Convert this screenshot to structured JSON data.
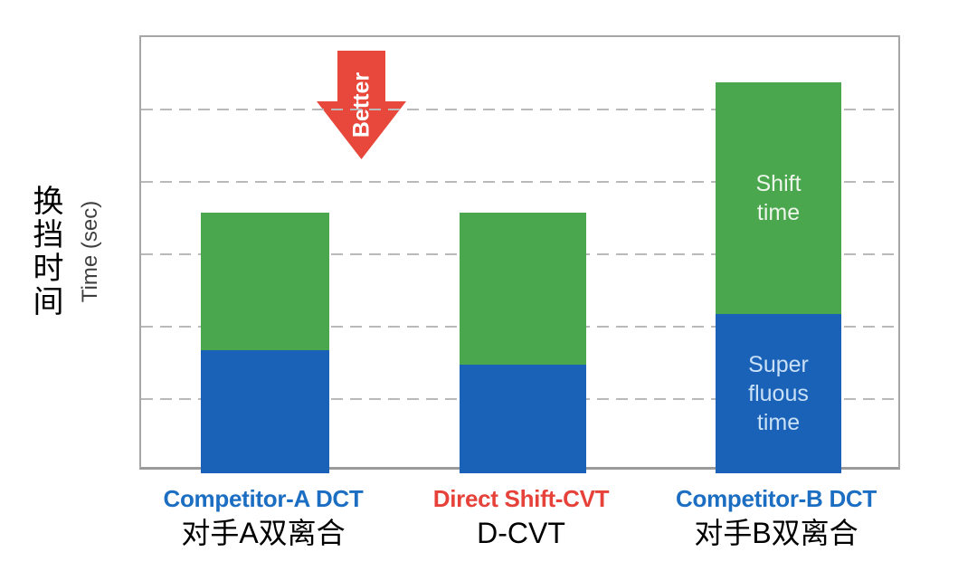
{
  "chart_data": {
    "type": "bar",
    "stacked": true,
    "title": "",
    "ylabel_zh": "换挡时间",
    "ylabel_en": "Time (sec)",
    "xlabel": "",
    "ylim": [
      0,
      6
    ],
    "yticks_labeled": false,
    "gridlines": {
      "count": 5,
      "style": "dashed",
      "color": "#b9b9b9"
    },
    "legend": "none",
    "categories": [
      "Competitor-A DCT",
      "Direct Shift-CVT",
      "Competitor-B DCT"
    ],
    "categories_zh": [
      "对手A双离合",
      "D-CVT",
      "对手B双离合"
    ],
    "category_label_colors": [
      "#1c6ec2",
      "#e6423a",
      "#1c6ec2"
    ],
    "series": [
      {
        "name": "Super fluous time",
        "color": "#1a62b7",
        "values": [
          1.7,
          1.5,
          2.2
        ],
        "label_lines": [
          "Super",
          "fluous",
          "time"
        ],
        "label_color": "#c9e0f6",
        "label_on_index": 2
      },
      {
        "name": "Shift time",
        "color": "#4aa74d",
        "values": [
          1.9,
          2.1,
          3.2
        ],
        "label_lines": [
          "Shift",
          "time"
        ],
        "label_color": "#eef6ec",
        "label_on_index": 2
      }
    ],
    "annotations": [
      {
        "type": "down-arrow",
        "text": "Better",
        "color": "#e8473b",
        "text_color": "#ffffff"
      }
    ]
  }
}
